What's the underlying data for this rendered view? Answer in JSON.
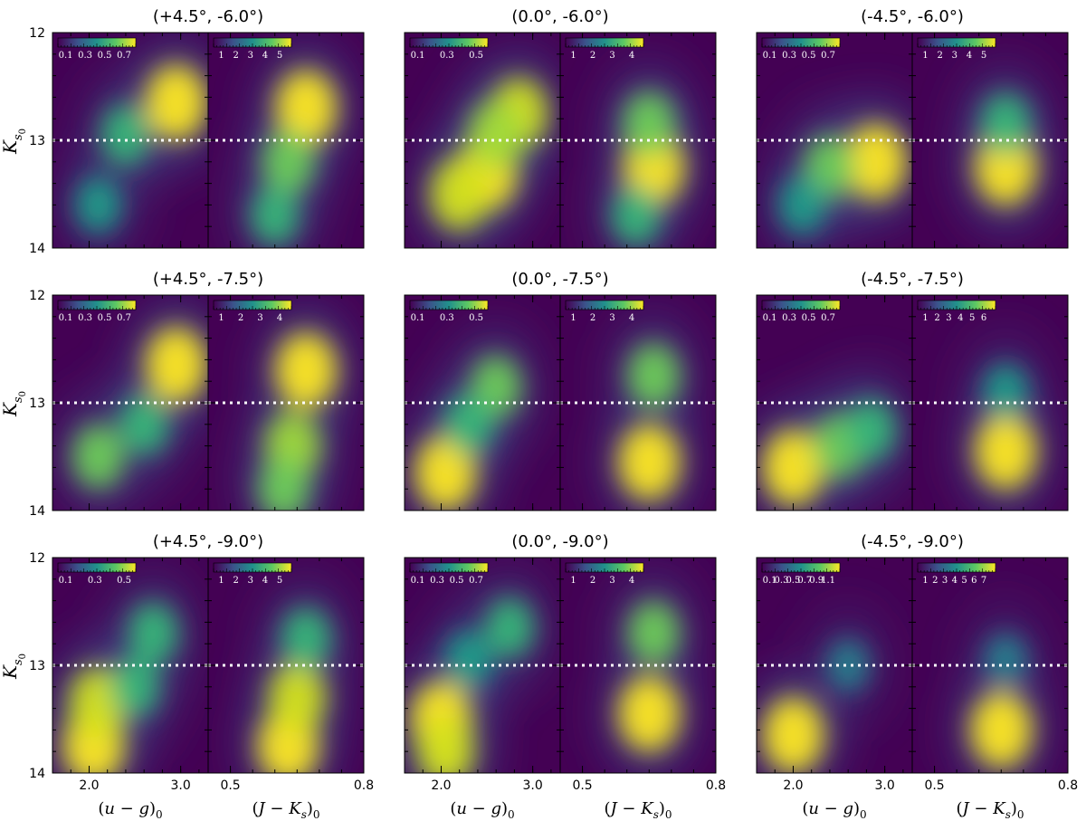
{
  "chart_data": {
    "type": "heatmap",
    "description_hidden": true,
    "shared": {
      "ylabel": "K_{s_0}",
      "ylim": [
        12,
        14
      ],
      "y_ticks": [
        "12",
        "13",
        "14"
      ],
      "reference_line_y": 13.0,
      "left_panel": {
        "xlabel": "(u − g)_0",
        "xlim": [
          1.6,
          3.3
        ],
        "x_ticks": [
          "2.0",
          "3.0"
        ],
        "x_tick_values": [
          2.0,
          3.0
        ]
      },
      "right_panel": {
        "xlabel": "(J − K_s)_0",
        "xlim": [
          0.45,
          0.8
        ],
        "x_ticks": [
          "0.5",
          "0.8"
        ],
        "x_tick_values": [
          0.5,
          0.8
        ]
      }
    },
    "fields": [
      {
        "title": "(+4.5°, -6.0°)",
        "ug_colorbar": [
          "0.1",
          "0.3",
          "0.5",
          "0.7"
        ],
        "jk_colorbar": [
          "1",
          "2",
          "3",
          "4",
          "5"
        ],
        "ug_density": [
          {
            "x": 2.95,
            "y": 12.65,
            "w": 1.0
          },
          {
            "x": 2.4,
            "y": 12.95,
            "w": 0.45
          },
          {
            "x": 2.1,
            "y": 13.6,
            "w": 0.3
          }
        ],
        "jk_density": [
          {
            "x": 0.67,
            "y": 12.7,
            "w": 1.0
          },
          {
            "x": 0.63,
            "y": 13.2,
            "w": 0.6
          },
          {
            "x": 0.6,
            "y": 13.7,
            "w": 0.4
          }
        ]
      },
      {
        "title": "(0.0°, -6.0°)",
        "ug_colorbar": [
          "0.1",
          "0.3",
          "0.5"
        ],
        "jk_colorbar": [
          "1",
          "2",
          "3",
          "4"
        ],
        "ug_density": [
          {
            "x": 2.5,
            "y": 13.3,
            "w": 1.0
          },
          {
            "x": 2.2,
            "y": 13.5,
            "w": 0.85
          },
          {
            "x": 2.85,
            "y": 12.75,
            "w": 0.8
          },
          {
            "x": 2.6,
            "y": 12.95,
            "w": 0.75
          }
        ],
        "jk_density": [
          {
            "x": 0.66,
            "y": 13.25,
            "w": 1.0
          },
          {
            "x": 0.65,
            "y": 12.85,
            "w": 0.6
          },
          {
            "x": 0.62,
            "y": 13.7,
            "w": 0.4
          }
        ]
      },
      {
        "title": "(-4.5°, -6.0°)",
        "ug_colorbar": [
          "0.1",
          "0.3",
          "0.5",
          "0.7"
        ],
        "jk_colorbar": [
          "1",
          "2",
          "3",
          "4",
          "5"
        ],
        "ug_density": [
          {
            "x": 2.9,
            "y": 13.2,
            "w": 1.0
          },
          {
            "x": 2.4,
            "y": 13.25,
            "w": 0.55
          },
          {
            "x": 2.1,
            "y": 13.6,
            "w": 0.35
          }
        ],
        "jk_density": [
          {
            "x": 0.66,
            "y": 13.25,
            "w": 1.0
          },
          {
            "x": 0.66,
            "y": 12.85,
            "w": 0.45
          }
        ]
      },
      {
        "title": "(+4.5°, -7.5°)",
        "ug_colorbar": [
          "0.1",
          "0.3",
          "0.5",
          "0.7"
        ],
        "jk_colorbar": [
          "1",
          "2",
          "3",
          "4"
        ],
        "ug_density": [
          {
            "x": 2.95,
            "y": 12.65,
            "w": 1.0
          },
          {
            "x": 2.1,
            "y": 13.5,
            "w": 0.55
          },
          {
            "x": 2.6,
            "y": 13.2,
            "w": 0.45
          }
        ],
        "jk_density": [
          {
            "x": 0.67,
            "y": 12.7,
            "w": 1.0
          },
          {
            "x": 0.64,
            "y": 13.4,
            "w": 0.75
          },
          {
            "x": 0.62,
            "y": 13.8,
            "w": 0.55
          }
        ]
      },
      {
        "title": "(0.0°, -7.5°)",
        "ug_colorbar": [
          "0.1",
          "0.3",
          "0.5"
        ],
        "jk_colorbar": [
          "1",
          "2",
          "3",
          "4"
        ],
        "ug_density": [
          {
            "x": 2.05,
            "y": 13.65,
            "w": 1.0
          },
          {
            "x": 2.6,
            "y": 12.85,
            "w": 0.5
          },
          {
            "x": 2.3,
            "y": 13.2,
            "w": 0.45
          }
        ],
        "jk_density": [
          {
            "x": 0.65,
            "y": 13.55,
            "w": 1.0
          },
          {
            "x": 0.66,
            "y": 12.75,
            "w": 0.6
          }
        ]
      },
      {
        "title": "(-4.5°, -7.5°)",
        "ug_colorbar": [
          "0.1",
          "0.3",
          "0.5",
          "0.7"
        ],
        "jk_colorbar": [
          "1",
          "2",
          "3",
          "4",
          "5",
          "6"
        ],
        "ug_density": [
          {
            "x": 2.0,
            "y": 13.6,
            "w": 1.0
          },
          {
            "x": 2.5,
            "y": 13.4,
            "w": 0.6
          },
          {
            "x": 2.85,
            "y": 13.25,
            "w": 0.45
          }
        ],
        "jk_density": [
          {
            "x": 0.66,
            "y": 13.45,
            "w": 1.0
          },
          {
            "x": 0.66,
            "y": 12.9,
            "w": 0.25
          }
        ]
      },
      {
        "title": "(+4.5°, -9.0°)",
        "ug_colorbar": [
          "0.1",
          "0.3",
          "0.5"
        ],
        "jk_colorbar": [
          "1",
          "2",
          "3",
          "4",
          "5"
        ],
        "ug_density": [
          {
            "x": 2.05,
            "y": 13.75,
            "w": 1.0
          },
          {
            "x": 2.1,
            "y": 13.35,
            "w": 0.85
          },
          {
            "x": 2.7,
            "y": 12.7,
            "w": 0.45
          },
          {
            "x": 2.5,
            "y": 13.2,
            "w": 0.4
          }
        ],
        "jk_density": [
          {
            "x": 0.63,
            "y": 13.75,
            "w": 1.0
          },
          {
            "x": 0.65,
            "y": 13.3,
            "w": 0.8
          },
          {
            "x": 0.67,
            "y": 12.75,
            "w": 0.45
          }
        ]
      },
      {
        "title": "(0.0°, -9.0°)",
        "ug_colorbar": [
          "0.1",
          "0.3",
          "0.5",
          "0.7"
        ],
        "jk_colorbar": [
          "1",
          "2",
          "3",
          "4"
        ],
        "ug_density": [
          {
            "x": 2.0,
            "y": 13.5,
            "w": 1.0
          },
          {
            "x": 2.05,
            "y": 13.8,
            "w": 0.8
          },
          {
            "x": 2.75,
            "y": 12.65,
            "w": 0.4
          },
          {
            "x": 2.3,
            "y": 12.95,
            "w": 0.35
          }
        ],
        "jk_density": [
          {
            "x": 0.65,
            "y": 13.45,
            "w": 1.0
          },
          {
            "x": 0.66,
            "y": 12.7,
            "w": 0.55
          }
        ]
      },
      {
        "title": "(-4.5°, -9.0°)",
        "ug_colorbar": [
          "0.1",
          "0.3",
          "0.5",
          "0.7",
          "0.9",
          "1.1"
        ],
        "jk_colorbar": [
          "1",
          "2",
          "3",
          "4",
          "5",
          "6",
          "7"
        ],
        "ug_density": [
          {
            "x": 2.0,
            "y": 13.65,
            "w": 1.0
          },
          {
            "x": 2.6,
            "y": 13.0,
            "w": 0.15
          }
        ],
        "jk_density": [
          {
            "x": 0.65,
            "y": 13.6,
            "w": 1.0
          },
          {
            "x": 0.66,
            "y": 12.95,
            "w": 0.15
          }
        ]
      }
    ]
  }
}
